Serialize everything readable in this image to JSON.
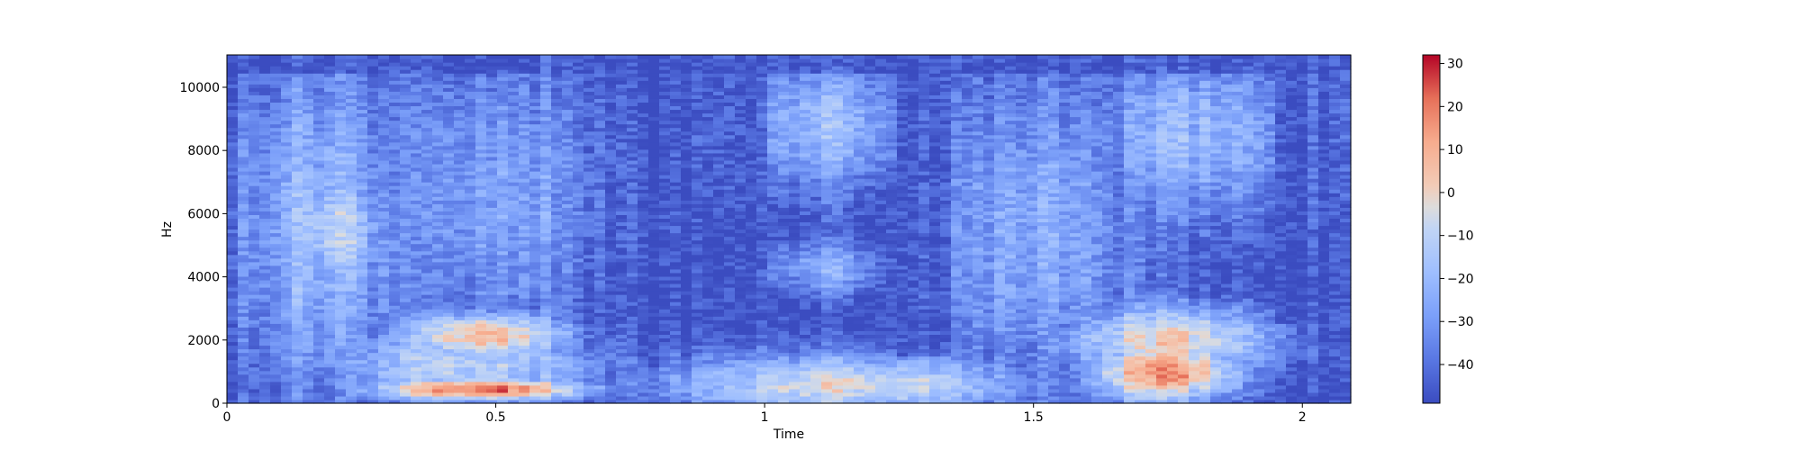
{
  "chart_data": {
    "type": "heatmap",
    "title": "",
    "xlabel": "Time",
    "ylabel": "Hz",
    "xlim": [
      0,
      2.09
    ],
    "ylim": [
      0,
      11025
    ],
    "x_ticks": [
      0,
      0.5,
      1,
      1.5,
      2
    ],
    "x_tick_labels": [
      "0",
      "0.5",
      "1",
      "1.5",
      "2"
    ],
    "y_ticks": [
      0,
      2000,
      4000,
      6000,
      8000,
      10000
    ],
    "y_tick_labels": [
      "0",
      "2000",
      "4000",
      "6000",
      "8000",
      "10000"
    ],
    "colorbar": {
      "cmap": "coolwarm",
      "range": [
        -49,
        32
      ],
      "ticks": [
        30,
        20,
        10,
        0,
        -10,
        -20,
        -30,
        -40
      ],
      "tick_labels": [
        "30",
        "20",
        "10",
        "0",
        "−10",
        "−20",
        "−30",
        "−40"
      ]
    },
    "grid": false,
    "summary_regions": [
      {
        "t": [
          0.0,
          0.33
        ],
        "f": [
          0,
          11000
        ],
        "level_db": -22
      },
      {
        "t": [
          0.08,
          0.3
        ],
        "f": [
          4000,
          7500
        ],
        "level_db": -8
      },
      {
        "t": [
          0.3,
          0.65
        ],
        "f": [
          0,
          3000
        ],
        "level_db": -5
      },
      {
        "t": [
          0.38,
          0.6
        ],
        "f": [
          1800,
          2600
        ],
        "level_db": 12
      },
      {
        "t": [
          0.3,
          0.62
        ],
        "f": [
          200,
          700
        ],
        "level_db": 25
      },
      {
        "t": [
          0.35,
          0.7
        ],
        "f": [
          3000,
          10500
        ],
        "level_db": -25
      },
      {
        "t": [
          0.85,
          1.0
        ],
        "f": [
          3000,
          11000
        ],
        "level_db": -49
      },
      {
        "t": [
          1.0,
          1.3
        ],
        "f": [
          0,
          1600
        ],
        "level_db": -12
      },
      {
        "t": [
          1.02,
          1.28
        ],
        "f": [
          6800,
          10300
        ],
        "level_db": -28
      },
      {
        "t": [
          1.35,
          1.6
        ],
        "f": [
          0,
          4000
        ],
        "level_db": -28
      },
      {
        "t": [
          1.6,
          1.95
        ],
        "f": [
          0,
          3000
        ],
        "level_db": -10
      },
      {
        "t": [
          1.65,
          1.85
        ],
        "f": [
          200,
          1800
        ],
        "level_db": 15
      },
      {
        "t": [
          1.65,
          1.95
        ],
        "f": [
          6000,
          10500
        ],
        "level_db": -28
      }
    ]
  }
}
